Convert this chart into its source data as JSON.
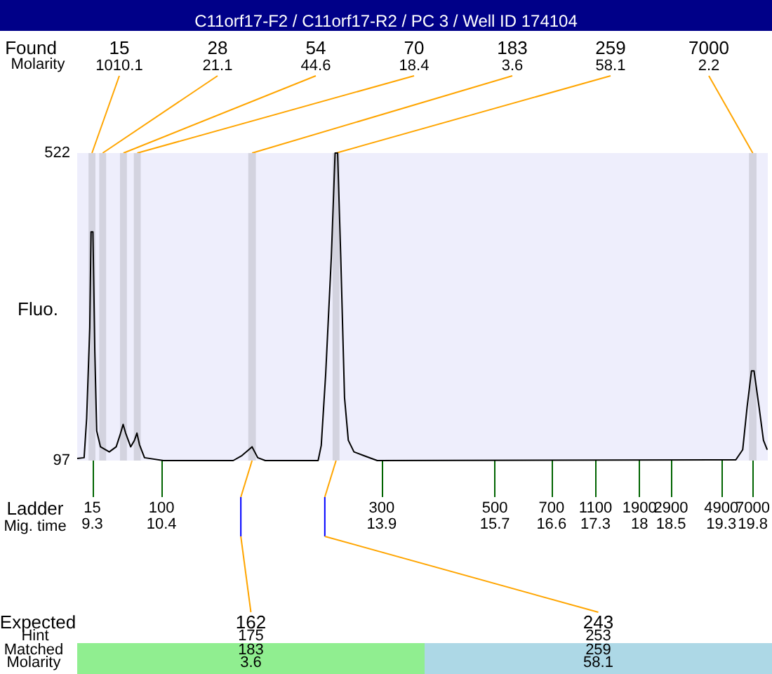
{
  "chart_data": {
    "type": "line",
    "title": "C11orf17-F2 / C11orf17-R2 / PC 3 / Well ID 174104",
    "ylabel": "Fluo.",
    "xlabel": "Mig. time",
    "color": "#000000",
    "marker": "none",
    "line_style": "solid",
    "x": [
      9.06,
      9.17,
      9.21,
      9.26,
      9.28,
      9.31,
      9.34,
      9.37,
      9.43,
      9.57,
      9.68,
      9.74,
      9.79,
      9.83,
      9.91,
      9.97,
      10.01,
      10.05,
      10.13,
      10.43,
      11.54,
      11.68,
      11.84,
      11.93,
      12.05,
      12.89,
      12.94,
      13.01,
      13.1,
      13.16,
      13.2,
      13.25,
      13.31,
      13.37,
      13.46,
      13.61,
      13.83,
      19.53,
      19.64,
      19.71,
      19.78,
      19.82,
      19.9,
      19.97,
      20.03
    ],
    "values": [
      100,
      101,
      155,
      281,
      413,
      413,
      248,
      138,
      116,
      109,
      116,
      132,
      147,
      135,
      116,
      125,
      135,
      119,
      101,
      97,
      97,
      104,
      116,
      101,
      97,
      97,
      118,
      216,
      378,
      522,
      522,
      378,
      184,
      125,
      109,
      104,
      97,
      98,
      112,
      171,
      221,
      221,
      171,
      125,
      112
    ],
    "xlim": [
      9.06,
      20.04
    ],
    "xticks": [
      9.3,
      10.4,
      13.9,
      15.7,
      16.6,
      17.3,
      18,
      18.5,
      19.3,
      19.8
    ],
    "ylim": [
      97,
      522
    ],
    "yticks": [
      97,
      522
    ],
    "bands": [
      {
        "axis": "x",
        "from": 9.24,
        "to": 9.35,
        "label": "15",
        "color": "#d3d3df"
      },
      {
        "axis": "x",
        "from": 9.41,
        "to": 9.52,
        "label": "28",
        "color": "#d3d3df"
      },
      {
        "axis": "x",
        "from": 9.74,
        "to": 9.85,
        "label": "54",
        "color": "#d3d3df"
      },
      {
        "axis": "x",
        "from": 9.96,
        "to": 10.07,
        "label": "70",
        "color": "#d3d3df"
      },
      {
        "axis": "x",
        "from": 11.78,
        "to": 11.9,
        "label": "183",
        "color": "#d3d3df"
      },
      {
        "axis": "x",
        "from": 13.12,
        "to": 13.23,
        "label": "259",
        "color": "#d3d3df"
      },
      {
        "axis": "x",
        "from": 19.74,
        "to": 19.86,
        "label": "7000",
        "color": "#d3d3df"
      }
    ],
    "annotations": [
      "Found",
      "Molarity",
      "1010.1",
      "21.1",
      "44.6",
      "18.4",
      "3.6",
      "58.1",
      "2.2",
      "Ladder",
      "15",
      "100",
      "300",
      "500",
      "700",
      "1100",
      "1900",
      "2900",
      "4900",
      "7000",
      "Expected",
      "Hint",
      "Matched",
      "Molarity",
      "162",
      "175",
      "183",
      "3.6",
      "243",
      "253",
      "259",
      "58.1"
    ]
  }
}
